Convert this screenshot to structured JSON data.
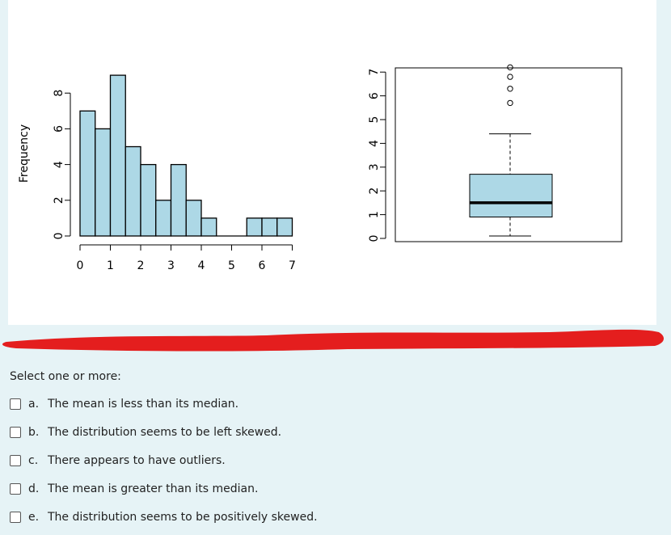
{
  "histogram": {
    "ylabel": "Frequency",
    "x_ticks": [
      "0",
      "1",
      "2",
      "3",
      "4",
      "5",
      "6",
      "7"
    ],
    "y_ticks": [
      "0",
      "2",
      "4",
      "6",
      "8"
    ],
    "fill_color": "#add8e6"
  },
  "boxplot": {
    "y_ticks": [
      "0",
      "1",
      "2",
      "3",
      "4",
      "5",
      "6",
      "7"
    ],
    "fill_color": "#add8e6"
  },
  "chart_data": [
    {
      "type": "bar",
      "ylabel": "Frequency",
      "xlim": [
        0,
        7
      ],
      "ylim": [
        0,
        9
      ],
      "bin_width": 0.5,
      "bins": [
        0,
        0.5,
        1,
        1.5,
        2,
        2.5,
        3,
        3.5,
        4,
        4.5,
        5,
        5.5,
        6,
        6.5
      ],
      "values": [
        7,
        6,
        9,
        5,
        4,
        2,
        4,
        2,
        1,
        0,
        0,
        1,
        1,
        1
      ]
    },
    {
      "type": "boxplot",
      "ylim": [
        0,
        7
      ],
      "whisker_low": 0.1,
      "q1": 0.9,
      "median": 1.5,
      "q3": 2.7,
      "whisker_high": 4.4,
      "outliers": [
        5.7,
        6.3,
        6.8,
        7.2
      ]
    }
  ],
  "question": {
    "prompt": "Select one or more:",
    "options": [
      {
        "letter": "a.",
        "text": "The mean is less than its median."
      },
      {
        "letter": "b.",
        "text": "The distribution seems to be left skewed."
      },
      {
        "letter": "c.",
        "text": "There appears to have outliers."
      },
      {
        "letter": "d.",
        "text": "The mean is greater than its median."
      },
      {
        "letter": "e.",
        "text": "The distribution seems to be positively skewed."
      }
    ]
  },
  "colors": {
    "redaction": "#e41e1e",
    "page_bg": "#e6f3f6"
  }
}
